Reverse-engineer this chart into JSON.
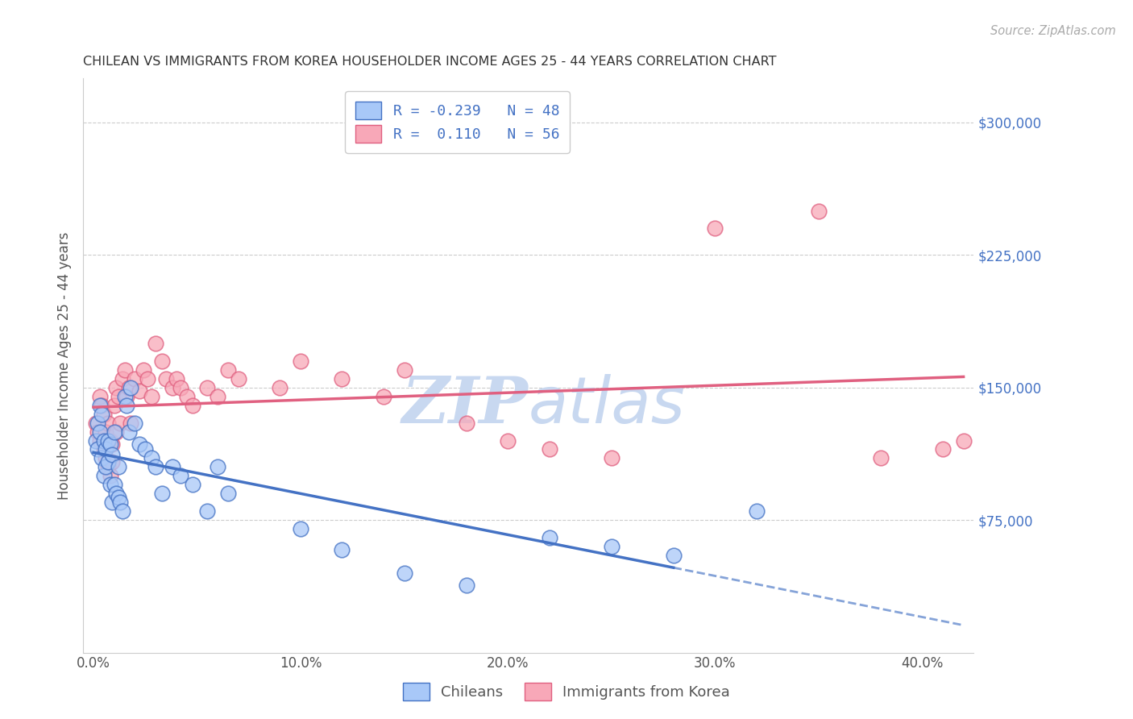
{
  "title": "CHILEAN VS IMMIGRANTS FROM KOREA HOUSEHOLDER INCOME AGES 25 - 44 YEARS CORRELATION CHART",
  "source": "Source: ZipAtlas.com",
  "ylabel": "Householder Income Ages 25 - 44 years",
  "xlabel_ticks": [
    "0.0%",
    "10.0%",
    "20.0%",
    "30.0%",
    "40.0%"
  ],
  "xlabel_vals": [
    0.0,
    0.1,
    0.2,
    0.3,
    0.4
  ],
  "ytick_labels": [
    "$75,000",
    "$150,000",
    "$225,000",
    "$300,000"
  ],
  "ytick_vals": [
    75000,
    150000,
    225000,
    300000
  ],
  "ylim": [
    0,
    325000
  ],
  "xlim": [
    -0.005,
    0.425
  ],
  "r_chilean": -0.239,
  "n_chilean": 48,
  "r_korea": 0.11,
  "n_korea": 56,
  "color_chilean": "#a8c8f8",
  "color_korea": "#f8a8b8",
  "color_chilean_line": "#4472c4",
  "color_korea_line": "#e06080",
  "watermark_color": "#c8d8f0",
  "chilean_x": [
    0.001,
    0.002,
    0.002,
    0.003,
    0.003,
    0.004,
    0.004,
    0.005,
    0.005,
    0.006,
    0.006,
    0.007,
    0.007,
    0.008,
    0.008,
    0.009,
    0.009,
    0.01,
    0.01,
    0.011,
    0.012,
    0.012,
    0.013,
    0.014,
    0.015,
    0.016,
    0.017,
    0.018,
    0.02,
    0.022,
    0.025,
    0.028,
    0.03,
    0.033,
    0.038,
    0.042,
    0.048,
    0.055,
    0.06,
    0.065,
    0.1,
    0.12,
    0.15,
    0.18,
    0.22,
    0.25,
    0.28,
    0.32
  ],
  "chilean_y": [
    120000,
    130000,
    115000,
    140000,
    125000,
    135000,
    110000,
    120000,
    100000,
    115000,
    105000,
    120000,
    108000,
    118000,
    95000,
    112000,
    85000,
    125000,
    95000,
    90000,
    88000,
    105000,
    85000,
    80000,
    145000,
    140000,
    125000,
    150000,
    130000,
    118000,
    115000,
    110000,
    105000,
    90000,
    105000,
    100000,
    95000,
    80000,
    105000,
    90000,
    70000,
    58000,
    45000,
    38000,
    65000,
    60000,
    55000,
    80000
  ],
  "korea_x": [
    0.001,
    0.002,
    0.003,
    0.003,
    0.004,
    0.005,
    0.005,
    0.006,
    0.006,
    0.007,
    0.007,
    0.008,
    0.008,
    0.009,
    0.009,
    0.01,
    0.011,
    0.011,
    0.012,
    0.013,
    0.014,
    0.015,
    0.016,
    0.017,
    0.018,
    0.02,
    0.022,
    0.024,
    0.026,
    0.028,
    0.03,
    0.033,
    0.035,
    0.038,
    0.04,
    0.042,
    0.045,
    0.048,
    0.055,
    0.06,
    0.065,
    0.07,
    0.09,
    0.1,
    0.12,
    0.14,
    0.15,
    0.18,
    0.2,
    0.22,
    0.25,
    0.3,
    0.35,
    0.38,
    0.41,
    0.42
  ],
  "korea_y": [
    130000,
    125000,
    145000,
    120000,
    140000,
    135000,
    115000,
    125000,
    110000,
    130000,
    105000,
    120000,
    100000,
    118000,
    108000,
    140000,
    150000,
    125000,
    145000,
    130000,
    155000,
    160000,
    145000,
    150000,
    130000,
    155000,
    148000,
    160000,
    155000,
    145000,
    175000,
    165000,
    155000,
    150000,
    155000,
    150000,
    145000,
    140000,
    150000,
    145000,
    160000,
    155000,
    150000,
    165000,
    155000,
    145000,
    160000,
    130000,
    120000,
    115000,
    110000,
    240000,
    250000,
    110000,
    115000,
    120000
  ]
}
